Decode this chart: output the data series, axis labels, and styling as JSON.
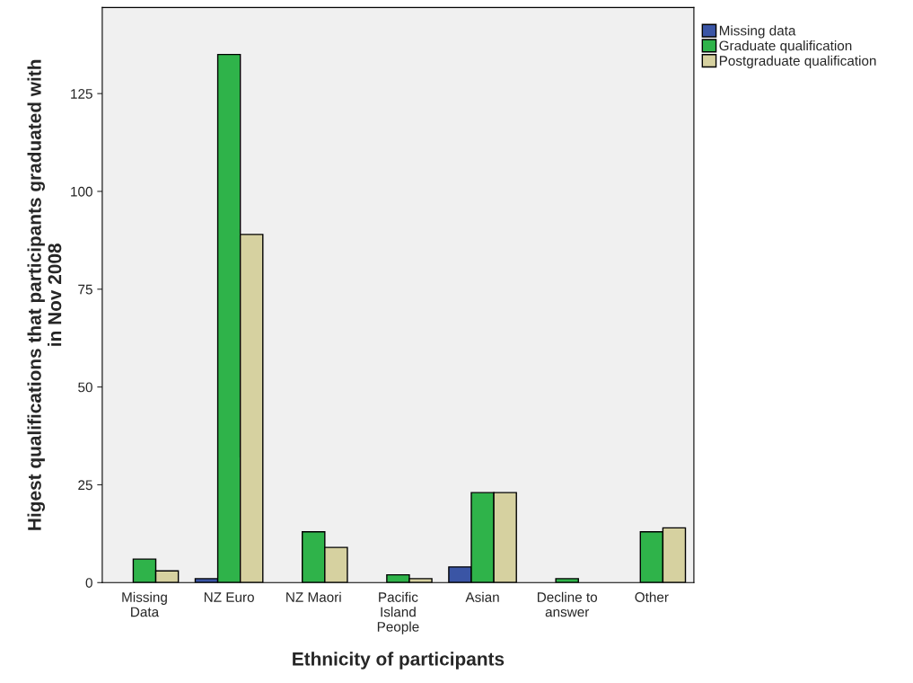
{
  "chart_data": {
    "type": "bar",
    "xlabel": "Ethnicity of participants",
    "ylabel": "Higest qualifications that participants graduated with\nin Nov 2008",
    "categories": [
      "Missing\nData",
      "NZ Euro",
      "NZ Maori",
      "Pacific\nIsland\nPeople",
      "Asian",
      "Decline to\nanswer",
      "Other"
    ],
    "series": [
      {
        "name": "Missing data",
        "color": "#3a55a5",
        "values": [
          null,
          1,
          null,
          null,
          4,
          null,
          null
        ]
      },
      {
        "name": "Graduate qualification",
        "color": "#2fb34a",
        "values": [
          6,
          135,
          13,
          2,
          23,
          1,
          13
        ]
      },
      {
        "name": "Postgraduate qualification",
        "color": "#d6d1a0",
        "values": [
          3,
          89,
          9,
          1,
          23,
          null,
          14
        ]
      }
    ],
    "ylim": [
      0,
      147
    ],
    "yticks": [
      0,
      25,
      50,
      75,
      100,
      125
    ],
    "grid": false,
    "legend": "top right"
  }
}
